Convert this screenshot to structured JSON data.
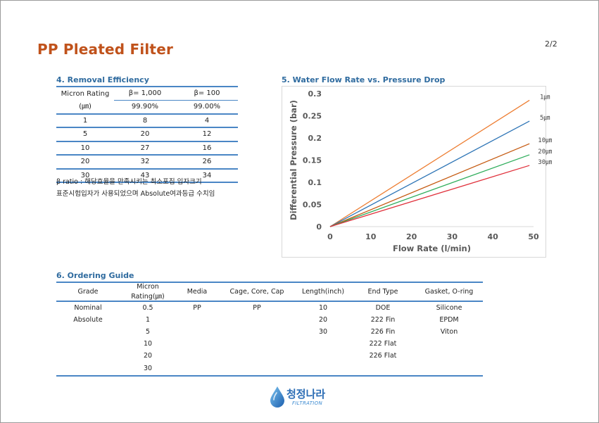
{
  "header": {
    "title": "PP Pleated Filter",
    "page": "2/2"
  },
  "removal_efficiency": {
    "heading": "4. Removal Efficiency",
    "col_micron": "Micron Rating",
    "unit": "(㎛)",
    "col_beta1000": "β= 1,000",
    "col_beta100": "β= 100",
    "pct_1000": "99.90%",
    "pct_100": "99.00%",
    "rows": [
      {
        "micron": "1",
        "b1000": "8",
        "b100": "4"
      },
      {
        "micron": "5",
        "b1000": "20",
        "b100": "12"
      },
      {
        "micron": "10",
        "b1000": "27",
        "b100": "16"
      },
      {
        "micron": "20",
        "b1000": "32",
        "b100": "26"
      },
      {
        "micron": "30",
        "b1000": "43",
        "b100": "34"
      }
    ],
    "note_line1": "β ratio : 해당효율을 만족시키는 최소포집 입자크기",
    "note_line2": "표준시험입자가 사용되었으며 Absolute여과등급 수치임"
  },
  "flow_chart_heading": "5. Water Flow Rate vs. Pressure Drop",
  "chart_data": {
    "type": "line",
    "title": "",
    "xlabel": "Flow Rate (l/min)",
    "ylabel": "Differential Pressure (bar)",
    "xlim": [
      0,
      50
    ],
    "ylim": [
      0,
      0.3
    ],
    "x_ticks": [
      "0",
      "10",
      "20",
      "30",
      "40",
      "50"
    ],
    "y_ticks": [
      "0",
      "0.05",
      "0.1",
      "0.15",
      "0.2",
      "0.25",
      "0.3"
    ],
    "grid": false,
    "series": [
      {
        "name": "1㎛",
        "color": "#ed7d31",
        "x": [
          0,
          49
        ],
        "y": [
          0,
          0.285
        ]
      },
      {
        "name": "5㎛",
        "color": "#2e75b6",
        "x": [
          0,
          49
        ],
        "y": [
          0,
          0.238
        ]
      },
      {
        "name": "10㎛",
        "color": "#c55a11",
        "x": [
          0,
          49
        ],
        "y": [
          0,
          0.187
        ]
      },
      {
        "name": "20㎛",
        "color": "#2ead5b",
        "x": [
          0,
          49
        ],
        "y": [
          0,
          0.162
        ]
      },
      {
        "name": "30㎛",
        "color": "#e0303b",
        "x": [
          0,
          49
        ],
        "y": [
          0,
          0.138
        ]
      }
    ],
    "series_label_color": "#444444"
  },
  "ordering_guide": {
    "heading": "6. Ordering Guide",
    "columns": [
      "Grade",
      "Micron Rating(㎛)",
      "Media",
      "Cage, Core, Cap",
      "Length(inch)",
      "End Type",
      "Gasket, O-ring"
    ],
    "rows": [
      [
        "Nominal",
        "0.5",
        "PP",
        "PP",
        "10",
        "DOE",
        "Silicone"
      ],
      [
        "Absolute",
        "1",
        "",
        "",
        "20",
        "222 Fin",
        "EPDM"
      ],
      [
        "",
        "5",
        "",
        "",
        "30",
        "226 Fin",
        "Viton"
      ],
      [
        "",
        "10",
        "",
        "",
        "",
        "222 Flat",
        ""
      ],
      [
        "",
        "20",
        "",
        "",
        "",
        "226 Flat",
        ""
      ],
      [
        "",
        "30",
        "",
        "",
        "",
        "",
        ""
      ]
    ]
  },
  "logo": {
    "korean": "청정나라",
    "english": "FILTRATION"
  },
  "colors": {
    "title": "#c0521b",
    "heading": "#2f6b9f",
    "rule": "#4a86c5"
  }
}
